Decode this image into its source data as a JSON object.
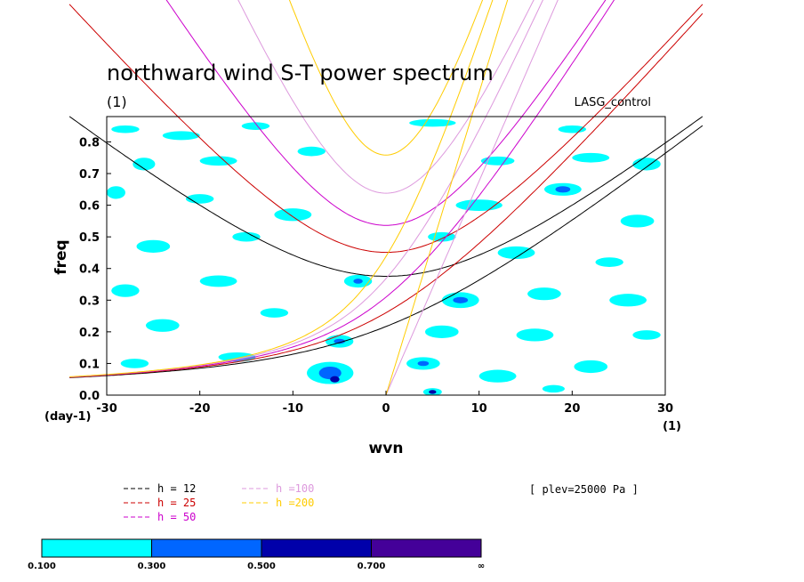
{
  "chart_data": {
    "type": "contour",
    "title": "northward wind S-T power spectrum",
    "subtitle_left": "(1)",
    "subtitle_right": "LASG_control",
    "xlabel": "wvn",
    "ylabel": "freq",
    "xunit_left": "(day-1)",
    "xunit_right": "(1)",
    "xlim": [
      -30,
      30
    ],
    "ylim": [
      0,
      0.88
    ],
    "xticks": [
      -30,
      -20,
      -10,
      0,
      10,
      20,
      30
    ],
    "yticks": [
      0.0,
      0.1,
      0.2,
      0.3,
      0.4,
      0.5,
      0.6,
      0.7,
      0.8
    ],
    "annotation": "[ plev=25000 Pa ]",
    "dispersion_curves": [
      {
        "label": "h = 12",
        "h": 12,
        "color": "#000000"
      },
      {
        "label": "h = 25",
        "h": 25,
        "color": "#cc0000"
      },
      {
        "label": "h = 50",
        "h": 50,
        "color": "#cc00cc"
      },
      {
        "label": "h =100",
        "h": 100,
        "color": "#dd99dd"
      },
      {
        "label": "h =200",
        "h": 200,
        "color": "#ffcc00"
      }
    ],
    "colorbar": {
      "levels": [
        "0.100",
        "0.300",
        "0.500",
        "0.700",
        "∞"
      ],
      "colors": [
        "#00ffff",
        "#0066ff",
        "#0000aa",
        "#440099"
      ]
    },
    "power_patches": [
      {
        "x": -28,
        "y": 0.84,
        "rx": 1.5,
        "ry": 0.012,
        "level": 0
      },
      {
        "x": -22,
        "y": 0.82,
        "rx": 2.0,
        "ry": 0.014,
        "level": 0
      },
      {
        "x": -14,
        "y": 0.85,
        "rx": 1.5,
        "ry": 0.012,
        "level": 0
      },
      {
        "x": 5,
        "y": 0.86,
        "rx": 2.5,
        "ry": 0.012,
        "level": 0
      },
      {
        "x": 20,
        "y": 0.84,
        "rx": 1.5,
        "ry": 0.012,
        "level": 0
      },
      {
        "x": -26,
        "y": 0.73,
        "rx": 1.2,
        "ry": 0.02,
        "level": 0
      },
      {
        "x": -18,
        "y": 0.74,
        "rx": 2.0,
        "ry": 0.015,
        "level": 0
      },
      {
        "x": -8,
        "y": 0.77,
        "rx": 1.5,
        "ry": 0.015,
        "level": 0
      },
      {
        "x": 12,
        "y": 0.74,
        "rx": 1.8,
        "ry": 0.014,
        "level": 0
      },
      {
        "x": 22,
        "y": 0.75,
        "rx": 2.0,
        "ry": 0.015,
        "level": 0
      },
      {
        "x": 28,
        "y": 0.73,
        "rx": 1.5,
        "ry": 0.02,
        "level": 0
      },
      {
        "x": -29,
        "y": 0.64,
        "rx": 1.0,
        "ry": 0.02,
        "level": 0
      },
      {
        "x": -20,
        "y": 0.62,
        "rx": 1.5,
        "ry": 0.015,
        "level": 0
      },
      {
        "x": -10,
        "y": 0.57,
        "rx": 2.0,
        "ry": 0.02,
        "level": 0
      },
      {
        "x": 10,
        "y": 0.6,
        "rx": 2.5,
        "ry": 0.018,
        "level": 0
      },
      {
        "x": 19,
        "y": 0.65,
        "rx": 2.0,
        "ry": 0.02,
        "level": 0
      },
      {
        "x": 19,
        "y": 0.65,
        "rx": 0.8,
        "ry": 0.01,
        "level": 1
      },
      {
        "x": 27,
        "y": 0.55,
        "rx": 1.8,
        "ry": 0.02,
        "level": 0
      },
      {
        "x": -25,
        "y": 0.47,
        "rx": 1.8,
        "ry": 0.02,
        "level": 0
      },
      {
        "x": -15,
        "y": 0.5,
        "rx": 1.5,
        "ry": 0.015,
        "level": 0
      },
      {
        "x": 6,
        "y": 0.5,
        "rx": 1.5,
        "ry": 0.015,
        "level": 0
      },
      {
        "x": 14,
        "y": 0.45,
        "rx": 2.0,
        "ry": 0.02,
        "level": 0
      },
      {
        "x": 24,
        "y": 0.42,
        "rx": 1.5,
        "ry": 0.015,
        "level": 0
      },
      {
        "x": -28,
        "y": 0.33,
        "rx": 1.5,
        "ry": 0.02,
        "level": 0
      },
      {
        "x": -18,
        "y": 0.36,
        "rx": 2.0,
        "ry": 0.018,
        "level": 0
      },
      {
        "x": -3,
        "y": 0.36,
        "rx": 1.5,
        "ry": 0.02,
        "level": 0
      },
      {
        "x": -3,
        "y": 0.36,
        "rx": 0.5,
        "ry": 0.008,
        "level": 1
      },
      {
        "x": 8,
        "y": 0.3,
        "rx": 2.0,
        "ry": 0.025,
        "level": 0
      },
      {
        "x": 8,
        "y": 0.3,
        "rx": 0.8,
        "ry": 0.01,
        "level": 1
      },
      {
        "x": 17,
        "y": 0.32,
        "rx": 1.8,
        "ry": 0.02,
        "level": 0
      },
      {
        "x": 26,
        "y": 0.3,
        "rx": 2.0,
        "ry": 0.02,
        "level": 0
      },
      {
        "x": -24,
        "y": 0.22,
        "rx": 1.8,
        "ry": 0.02,
        "level": 0
      },
      {
        "x": -12,
        "y": 0.26,
        "rx": 1.5,
        "ry": 0.015,
        "level": 0
      },
      {
        "x": -5,
        "y": 0.17,
        "rx": 1.5,
        "ry": 0.02,
        "level": 0
      },
      {
        "x": -5,
        "y": 0.17,
        "rx": 0.6,
        "ry": 0.008,
        "level": 1
      },
      {
        "x": 6,
        "y": 0.2,
        "rx": 1.8,
        "ry": 0.02,
        "level": 0
      },
      {
        "x": 16,
        "y": 0.19,
        "rx": 2.0,
        "ry": 0.02,
        "level": 0
      },
      {
        "x": 28,
        "y": 0.19,
        "rx": 1.5,
        "ry": 0.015,
        "level": 0
      },
      {
        "x": -27,
        "y": 0.1,
        "rx": 1.5,
        "ry": 0.015,
        "level": 0
      },
      {
        "x": -16,
        "y": 0.12,
        "rx": 2.0,
        "ry": 0.015,
        "level": 0
      },
      {
        "x": -6,
        "y": 0.07,
        "rx": 2.5,
        "ry": 0.035,
        "level": 0
      },
      {
        "x": -6,
        "y": 0.07,
        "rx": 1.2,
        "ry": 0.02,
        "level": 1
      },
      {
        "x": -5.5,
        "y": 0.05,
        "rx": 0.5,
        "ry": 0.01,
        "level": 2
      },
      {
        "x": 4,
        "y": 0.1,
        "rx": 1.8,
        "ry": 0.02,
        "level": 0
      },
      {
        "x": 4,
        "y": 0.1,
        "rx": 0.6,
        "ry": 0.008,
        "level": 1
      },
      {
        "x": 12,
        "y": 0.06,
        "rx": 2.0,
        "ry": 0.02,
        "level": 0
      },
      {
        "x": 22,
        "y": 0.09,
        "rx": 1.8,
        "ry": 0.02,
        "level": 0
      },
      {
        "x": 5,
        "y": 0.01,
        "rx": 1.0,
        "ry": 0.012,
        "level": 0
      },
      {
        "x": 5,
        "y": 0.01,
        "rx": 0.4,
        "ry": 0.006,
        "level": 2
      },
      {
        "x": 18,
        "y": 0.02,
        "rx": 1.2,
        "ry": 0.012,
        "level": 0
      }
    ]
  }
}
